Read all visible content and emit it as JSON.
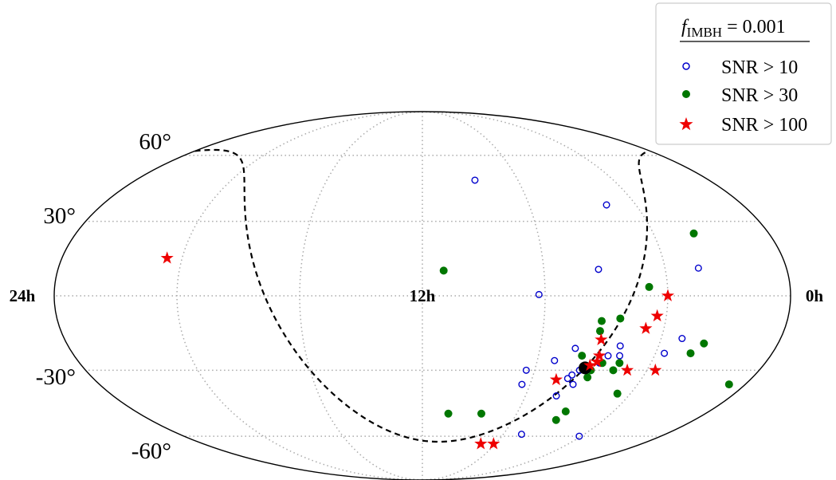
{
  "chart_data": {
    "type": "scatter",
    "projection": "mollweide",
    "x_axis": "right ascension (hours, increasing to the left)",
    "ra_ticks": [
      {
        "value": 24,
        "label": "24h"
      },
      {
        "value": 12,
        "label": "12h"
      },
      {
        "value": 0,
        "label": "0h"
      }
    ],
    "dec_ticks": [
      {
        "value": 60,
        "label": "60°"
      },
      {
        "value": 30,
        "label": "30°"
      },
      {
        "value": -30,
        "label": "-30°"
      },
      {
        "value": -60,
        "label": "-60°"
      }
    ],
    "grid": true,
    "legend": {
      "placement": "top-right",
      "title": "f_IMBH = 0.001",
      "title_main": "f",
      "title_sub": "IMBH",
      "title_rest": " = 0.001",
      "entries": [
        {
          "label": "SNR > 10",
          "marker": "open-circle",
          "color": "#0000cc"
        },
        {
          "label": "SNR > 30",
          "marker": "filled-circle",
          "color": "#007700"
        },
        {
          "label": "SNR > 100",
          "marker": "star",
          "color": "#ee0000"
        }
      ]
    },
    "special_marker": {
      "name": "galactic-center",
      "ra": 17.76,
      "dec": -29.0,
      "color": "#000000"
    },
    "galactic_plane": {
      "style": "dashed",
      "color": "#000000"
    },
    "series": [
      {
        "name": "SNR > 10",
        "color": "#0000cc",
        "points": [
          {
            "ra": 14.2,
            "dec": 48.0
          },
          {
            "ra": 18.9,
            "dec": 37.0
          },
          {
            "ra": 21.1,
            "dec": 11.0
          },
          {
            "ra": 17.8,
            "dec": 10.5
          },
          {
            "ra": 15.8,
            "dec": 0.5
          },
          {
            "ra": 20.7,
            "dec": -17.0
          },
          {
            "ra": 20.3,
            "dec": -23.0
          },
          {
            "ra": 18.7,
            "dec": -20.0
          },
          {
            "ra": 18.8,
            "dec": -24.0
          },
          {
            "ra": 18.4,
            "dec": -24.0
          },
          {
            "ra": 17.2,
            "dec": -21.0
          },
          {
            "ra": 16.6,
            "dec": -26.0
          },
          {
            "ra": 15.7,
            "dec": -30.0
          },
          {
            "ra": 18.2,
            "dec": -27.0
          },
          {
            "ra": 17.6,
            "dec": -30.0
          },
          {
            "ra": 17.4,
            "dec": -32.0
          },
          {
            "ra": 17.3,
            "dec": -33.5
          },
          {
            "ra": 17.6,
            "dec": -36.0
          },
          {
            "ra": 17.2,
            "dec": -41.0
          },
          {
            "ra": 15.7,
            "dec": -36.0
          },
          {
            "ra": 19.9,
            "dec": -60.0
          },
          {
            "ra": 16.9,
            "dec": -59.0
          }
        ]
      },
      {
        "name": "SNR > 30",
        "color": "#007700",
        "points": [
          {
            "ra": 21.4,
            "dec": 25.0
          },
          {
            "ra": 12.7,
            "dec": 10.0
          },
          {
            "ra": 19.4,
            "dec": 3.5
          },
          {
            "ra": 18.5,
            "dec": -9.0
          },
          {
            "ra": 17.9,
            "dec": -10.0
          },
          {
            "ra": 17.9,
            "dec": -14.0
          },
          {
            "ra": 21.5,
            "dec": -19.0
          },
          {
            "ra": 21.2,
            "dec": -23.0
          },
          {
            "ra": 18.9,
            "dec": -27.0
          },
          {
            "ra": 18.3,
            "dec": -27.0
          },
          {
            "ra": 17.5,
            "dec": -24.0
          },
          {
            "ra": 18.0,
            "dec": -30.0
          },
          {
            "ra": 18.8,
            "dec": -30.0
          },
          {
            "ra": 18.0,
            "dec": -33.0
          },
          {
            "ra": 23.4,
            "dec": -36.0
          },
          {
            "ra": 19.5,
            "dec": -40.0
          },
          {
            "ra": 18.0,
            "dec": -48.0
          },
          {
            "ra": 17.9,
            "dec": -52.0
          },
          {
            "ra": 14.5,
            "dec": -49.0
          },
          {
            "ra": 13.1,
            "dec": -49.0
          }
        ]
      },
      {
        "name": "SNR > 100",
        "color": "#ee0000",
        "points": [
          {
            "ra": 20.0,
            "dec": 0.0
          },
          {
            "ra": 19.7,
            "dec": -8.0
          },
          {
            "ra": 19.4,
            "dec": -13.0
          },
          {
            "ra": 18.0,
            "dec": -17.5
          },
          {
            "ra": 18.1,
            "dec": -24.0
          },
          {
            "ra": 18.1,
            "dec": -26.5
          },
          {
            "ra": 17.9,
            "dec": -28.0
          },
          {
            "ra": 20.3,
            "dec": -30.0
          },
          {
            "ra": 19.3,
            "dec": -30.0
          },
          {
            "ra": 16.9,
            "dec": -34.0
          },
          {
            "ra": 15.9,
            "dec": -64.0
          },
          {
            "ra": 15.2,
            "dec": -64.0
          },
          {
            "ra": 3.5,
            "dec": 15.0
          }
        ]
      }
    ]
  }
}
